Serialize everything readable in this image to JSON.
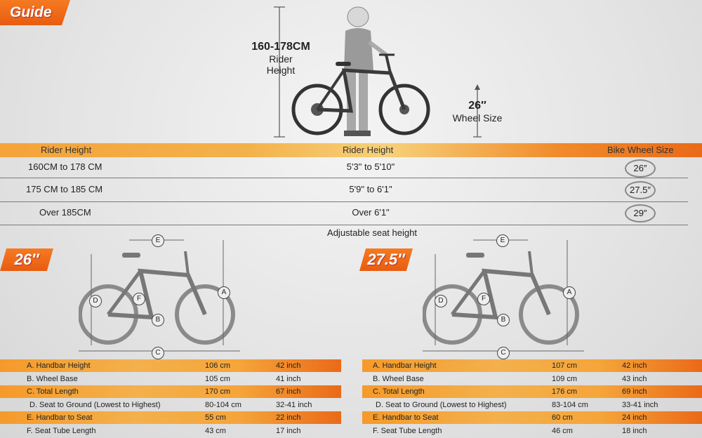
{
  "guide": {
    "label": "Guide"
  },
  "hero": {
    "rider_height": "160-178CM",
    "rider_height_label_1": "Rider",
    "rider_height_label_2": "Height",
    "wheel_size": "26″",
    "wheel_size_label": "Wheel Size"
  },
  "size_table": {
    "headers": [
      "Rider Height",
      "Rider Height",
      "Bike Wheel Size"
    ],
    "rows": [
      {
        "cm": "160CM to 178 CM",
        "ft": "5'3\" to 5'10\"",
        "wheel": "26″"
      },
      {
        "cm": "175 CM to 185 CM",
        "ft": "5'9\" to 6'1\"",
        "wheel": "27.5″"
      },
      {
        "cm": "Over 185CM",
        "ft": "Over 6'1\"",
        "wheel": "29″"
      }
    ],
    "footnote": "Adjustable seat height"
  },
  "panels": [
    {
      "tag": "26″",
      "specs": [
        {
          "label": "A. Handbar Height",
          "cm": "106 cm",
          "inch": "42 inch"
        },
        {
          "label": "B. Wheel Base",
          "cm": "105 cm",
          "inch": "41 inch"
        },
        {
          "label": "C. Total Length",
          "cm": "170 cm",
          "inch": "67 inch"
        },
        {
          "label": "D. Seat to Ground (Lowest to Highest)",
          "cm": "80-104 cm",
          "inch": "32-41 inch"
        },
        {
          "label": "E. Handbar to Seat",
          "cm": "55 cm",
          "inch": "22 inch"
        },
        {
          "label": "F. Seat Tube Length",
          "cm": "43 cm",
          "inch": "17 inch"
        }
      ]
    },
    {
      "tag": "27.5″",
      "specs": [
        {
          "label": "A. Handbar Height",
          "cm": "107 cm",
          "inch": "42 inch"
        },
        {
          "label": "B. Wheel Base",
          "cm": "109 cm",
          "inch": "43 inch"
        },
        {
          "label": "C. Total Length",
          "cm": "176 cm",
          "inch": "69 inch"
        },
        {
          "label": "D. Seat to Ground (Lowest to Highest)",
          "cm": "83-104 cm",
          "inch": "33-41 inch"
        },
        {
          "label": "E. Handbar to Seat",
          "cm": "60 cm",
          "inch": "24 inch"
        },
        {
          "label": "F. Seat Tube Length",
          "cm": "46 cm",
          "inch": "18 inch"
        }
      ]
    }
  ],
  "diagram_letters": [
    "A",
    "B",
    "C",
    "D",
    "E",
    "F"
  ],
  "colors": {
    "accent": "#ee6a1a",
    "band": "#f4a83a"
  }
}
